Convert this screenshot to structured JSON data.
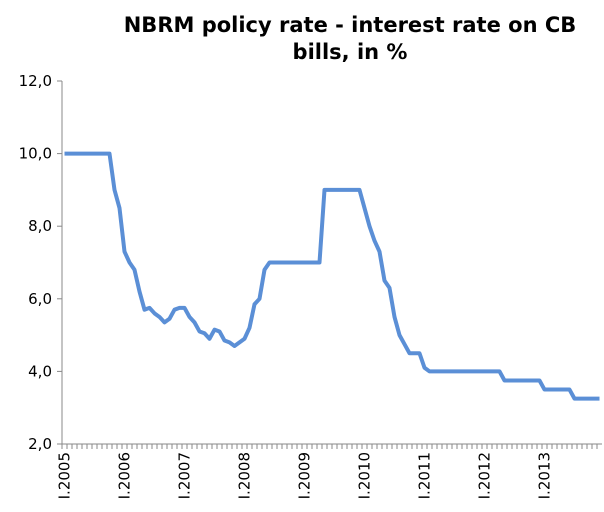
{
  "chart_data": {
    "type": "line",
    "title": [
      "NBRM policy rate - interest rate on CB",
      "bills, in %"
    ],
    "categories": [
      "I.2005",
      null,
      null,
      null,
      null,
      null,
      null,
      null,
      null,
      null,
      null,
      null,
      "I.2006",
      null,
      null,
      null,
      null,
      null,
      null,
      null,
      null,
      null,
      null,
      null,
      "I.2007",
      null,
      null,
      null,
      null,
      null,
      null,
      null,
      null,
      null,
      null,
      null,
      "I.2008",
      null,
      null,
      null,
      null,
      null,
      null,
      null,
      null,
      null,
      null,
      null,
      "I.2009",
      null,
      null,
      null,
      null,
      null,
      null,
      null,
      null,
      null,
      null,
      null,
      "I.2010",
      null,
      null,
      null,
      null,
      null,
      null,
      null,
      null,
      null,
      null,
      null,
      "I.2011",
      null,
      null,
      null,
      null,
      null,
      null,
      null,
      null,
      null,
      null,
      null,
      "I.2012",
      null,
      null,
      null,
      null,
      null,
      null,
      null,
      null,
      null,
      null,
      null,
      "I.2013",
      null,
      null,
      null,
      null,
      null,
      null,
      null,
      null,
      null,
      null,
      null
    ],
    "series": [
      {
        "color": "#5b8fd6",
        "values": [
          10,
          10,
          10,
          10,
          10,
          10,
          10,
          10,
          10,
          10,
          9.0,
          8.5,
          7.3,
          7.0,
          6.8,
          6.2,
          5.7,
          5.75,
          5.6,
          5.5,
          5.35,
          5.45,
          5.7,
          5.75,
          5.75,
          5.5,
          5.35,
          5.1,
          5.05,
          4.9,
          5.15,
          5.1,
          4.85,
          4.8,
          4.7,
          4.8,
          4.9,
          5.2,
          5.85,
          6.0,
          6.8,
          7.0,
          7.0,
          7.0,
          7.0,
          7.0,
          7.0,
          7.0,
          7.0,
          7.0,
          7.0,
          7.0,
          9.0,
          9.0,
          9.0,
          9.0,
          9.0,
          9.0,
          9.0,
          9.0,
          8.5,
          8.0,
          7.6,
          7.3,
          6.5,
          6.3,
          5.5,
          5.0,
          4.75,
          4.5,
          4.5,
          4.5,
          4.1,
          4.0,
          4.0,
          4.0,
          4.0,
          4.0,
          4.0,
          4.0,
          4.0,
          4.0,
          4.0,
          4.0,
          4.0,
          4.0,
          4.0,
          4.0,
          3.75,
          3.75,
          3.75,
          3.75,
          3.75,
          3.75,
          3.75,
          3.75,
          3.5,
          3.5,
          3.5,
          3.5,
          3.5,
          3.5,
          3.25,
          3.25,
          3.25,
          3.25,
          3.25,
          3.25
        ]
      }
    ],
    "ylim": [
      2,
      12
    ],
    "yticks": [
      {
        "value": 2,
        "label": "2,0"
      },
      {
        "value": 4,
        "label": "4,0"
      },
      {
        "value": 6,
        "label": "6,0"
      },
      {
        "value": 8,
        "label": "8,0"
      },
      {
        "value": 10,
        "label": "10,0"
      },
      {
        "value": 12,
        "label": "12,0"
      }
    ],
    "grid": false
  }
}
